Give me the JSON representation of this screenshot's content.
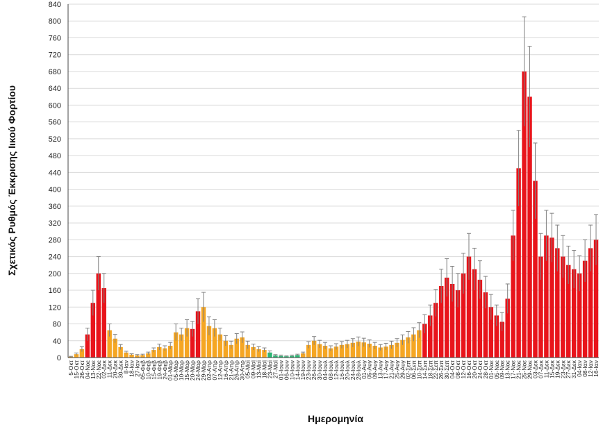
{
  "chart_data": {
    "type": "bar",
    "xlabel": "Ημερομηνία",
    "ylabel": "Σχετικός Ρυθμός Έκκρισης Ιικού Φορτίου",
    "ylim": [
      0,
      840
    ],
    "yticks": [
      0,
      40,
      80,
      120,
      160,
      200,
      240,
      280,
      320,
      360,
      400,
      440,
      480,
      520,
      560,
      600,
      640,
      680,
      720,
      760,
      800,
      840
    ],
    "grid": "horizontal",
    "legend": "none",
    "colors": {
      "red": "#e8141b",
      "orange": "#f5a623",
      "green": "#2bb673",
      "error_bar": "#808080",
      "grid": "#d9d9d9"
    },
    "tick_labels": [
      "5-Οκτ",
      "15-Οκτ",
      "26-Οκτ",
      "04-Νοε",
      "13-Νοε",
      "22-Νοε",
      "02-Δεκ",
      "11-Δεκ",
      "20-Δεκ",
      "30-Δεκ",
      "8-Ιαν",
      "18-Ιαν",
      "27-Ιαν",
      "05-Φεβ",
      "10-Φεβ",
      "15-Φεβ",
      "19-Φεβ",
      "24-Φεβ",
      "01-Μαρ",
      "05-Μαρ",
      "10-Μαρ",
      "15-Μαρ",
      "20-Μαρ",
      "24-Μαρ",
      "29-Μαρ",
      "02-Απρ",
      "07-Απρ",
      "12-Απρ",
      "16-Απρ",
      "21-Απρ",
      "26-Απρ",
      "30-Απρ",
      "05-Μαϊ",
      "09-Μαϊ",
      "13-Μαϊ",
      "18-Μαϊ",
      "23-Μαϊ",
      "27-Μαϊ",
      "01-Ιουν",
      "06-Ιουν",
      "10-Ιουν",
      "14-Ιουν",
      "19-Ιουν",
      "23-Ιουν",
      "26-Ιουν",
      "30-Ιουν",
      "04-Ιουλ",
      "08-Ιουλ",
      "12-Ιουλ",
      "16-Ιουλ",
      "20-Ιουλ",
      "24-Ιουλ",
      "28-Ιουλ",
      "01-Αυγ",
      "05-Αυγ",
      "09-Αυγ",
      "13-Αυγ",
      "17-Αυγ",
      "21-Αυγ",
      "25-Αυγ",
      "29-Αυγ",
      "02-Σεπ",
      "06-Σεπ",
      "10-Σεπ",
      "14-Σεπ",
      "18-Σεπ",
      "22-Σεπ",
      "26-Σεπ",
      "30-Σεπ",
      "04-Οκτ",
      "08-Οκτ",
      "12-Οκτ",
      "16-Οκτ",
      "20-Οκτ",
      "24-Οκτ",
      "28-Οκτ",
      "01-Νοε",
      "05-Νοε",
      "09-Νοε",
      "13-Νοε",
      "17-Νοε",
      "21-Νοε",
      "25-Νοε",
      "29-Νοε",
      "03-Δεκ",
      "07-Δεκ",
      "11-Δεκ",
      "15-Δεκ",
      "19-Δεκ",
      "23-Δεκ",
      "27-Δεκ",
      "31-Δεκ",
      "04-Ιαν",
      "08-Ιαν",
      "12-Ιαν",
      "16-Ιαν"
    ],
    "x": [
      0,
      3,
      6,
      9,
      12,
      15,
      18,
      21,
      24,
      27,
      30,
      33,
      36,
      39,
      42,
      45,
      48,
      51,
      54,
      57,
      60,
      63,
      66,
      69,
      72,
      75,
      78,
      81,
      84,
      87,
      90,
      93,
      96,
      99,
      102,
      105,
      108,
      111,
      114,
      117,
      120,
      123,
      126,
      129,
      132,
      135,
      138,
      141,
      144,
      147,
      150,
      153,
      156,
      159,
      162,
      165,
      168,
      171,
      174,
      177,
      180,
      183,
      186,
      189,
      192,
      195,
      198,
      201,
      204,
      207,
      210,
      213,
      216,
      219,
      222,
      225,
      228,
      231,
      234,
      237,
      240,
      243,
      246,
      249,
      252,
      255,
      258,
      261,
      264,
      267,
      270,
      273,
      276,
      279,
      282,
      285
    ],
    "values": [
      2,
      8,
      20,
      55,
      130,
      200,
      165,
      65,
      45,
      25,
      12,
      7,
      5,
      6,
      10,
      18,
      25,
      22,
      28,
      60,
      55,
      70,
      68,
      110,
      120,
      75,
      70,
      55,
      40,
      30,
      45,
      48,
      30,
      25,
      20,
      18,
      12,
      5,
      4,
      3,
      4,
      6,
      10,
      30,
      40,
      32,
      28,
      22,
      26,
      30,
      32,
      35,
      38,
      36,
      33,
      28,
      24,
      26,
      30,
      35,
      42,
      48,
      55,
      65,
      80,
      100,
      130,
      170,
      190,
      175,
      160,
      200,
      240,
      210,
      185,
      155,
      120,
      100,
      85,
      140,
      290,
      450,
      680,
      620,
      420,
      240,
      290,
      285,
      260,
      240,
      220,
      210,
      200,
      230,
      260,
      280
    ],
    "errors": [
      1,
      3,
      6,
      15,
      30,
      40,
      35,
      15,
      10,
      6,
      3,
      2,
      2,
      2,
      3,
      5,
      7,
      6,
      8,
      20,
      15,
      20,
      18,
      30,
      35,
      22,
      20,
      15,
      12,
      9,
      12,
      13,
      9,
      7,
      6,
      5,
      4,
      2,
      2,
      1,
      2,
      2,
      3,
      8,
      10,
      9,
      8,
      6,
      7,
      8,
      9,
      10,
      11,
      10,
      9,
      8,
      7,
      8,
      9,
      10,
      12,
      14,
      16,
      18,
      22,
      25,
      32,
      40,
      45,
      42,
      40,
      48,
      55,
      50,
      45,
      38,
      30,
      25,
      22,
      35,
      60,
      90,
      130,
      120,
      90,
      55,
      60,
      58,
      55,
      50,
      45,
      45,
      42,
      50,
      55,
      60
    ],
    "colors_per_bar": [
      "orange",
      "orange",
      "orange",
      "red",
      "red",
      "red",
      "red",
      "orange",
      "orange",
      "orange",
      "orange",
      "orange",
      "orange",
      "orange",
      "orange",
      "orange",
      "orange",
      "orange",
      "orange",
      "orange",
      "orange",
      "orange",
      "red",
      "red",
      "orange",
      "orange",
      "orange",
      "orange",
      "orange",
      "orange",
      "orange",
      "orange",
      "orange",
      "orange",
      "orange",
      "orange",
      "green",
      "green",
      "green",
      "green",
      "green",
      "green",
      "orange",
      "orange",
      "orange",
      "orange",
      "orange",
      "orange",
      "orange",
      "orange",
      "orange",
      "orange",
      "orange",
      "orange",
      "orange",
      "orange",
      "orange",
      "orange",
      "orange",
      "orange",
      "orange",
      "orange",
      "orange",
      "orange",
      "red",
      "red",
      "red",
      "red",
      "red",
      "red",
      "red",
      "red",
      "red",
      "red",
      "red",
      "red",
      "red",
      "red",
      "red",
      "red",
      "red",
      "red",
      "red",
      "red",
      "red",
      "red",
      "red",
      "red",
      "red",
      "red",
      "red",
      "red",
      "red",
      "red",
      "red",
      "red"
    ]
  }
}
